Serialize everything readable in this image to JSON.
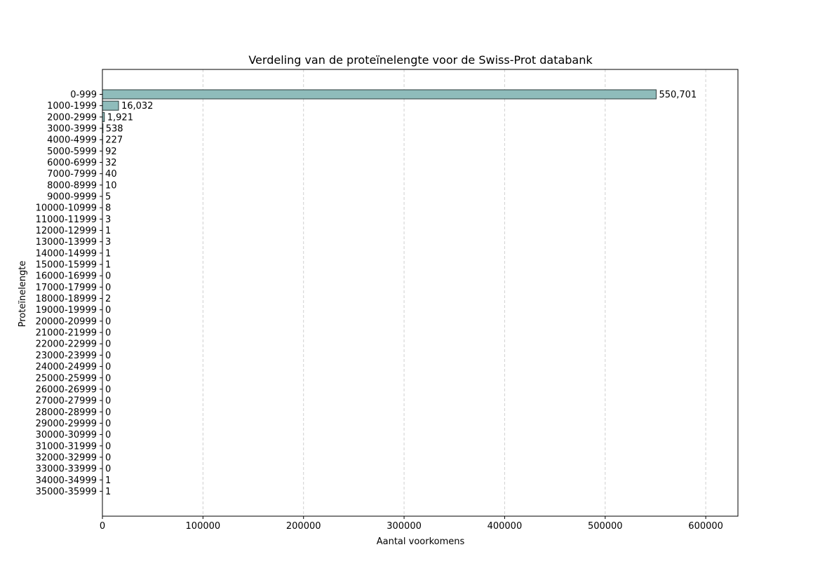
{
  "chart_data": {
    "type": "bar",
    "orientation": "horizontal",
    "title": "Verdeling van de proteïnelengte voor de Swiss-Prot databank",
    "xlabel": "Aantal voorkomens",
    "ylabel": "Proteïnelengte",
    "xlim": [
      0,
      632000
    ],
    "xticks": [
      0,
      100000,
      200000,
      300000,
      400000,
      500000,
      600000
    ],
    "xtick_labels": [
      "0",
      "100000",
      "200000",
      "300000",
      "400000",
      "500000",
      "600000"
    ],
    "grid": "x-axis dashed",
    "bar_color": "#8fbcbb",
    "bar_edge_color": "#2e3b3b",
    "categories": [
      "0-999",
      "1000-1999",
      "2000-2999",
      "3000-3999",
      "4000-4999",
      "5000-5999",
      "6000-6999",
      "7000-7999",
      "8000-8999",
      "9000-9999",
      "10000-10999",
      "11000-11999",
      "12000-12999",
      "13000-13999",
      "14000-14999",
      "15000-15999",
      "16000-16999",
      "17000-17999",
      "18000-18999",
      "19000-19999",
      "20000-20999",
      "21000-21999",
      "22000-22999",
      "23000-23999",
      "24000-24999",
      "25000-25999",
      "26000-26999",
      "27000-27999",
      "28000-28999",
      "29000-29999",
      "30000-30999",
      "31000-31999",
      "32000-32999",
      "33000-33999",
      "34000-34999",
      "35000-35999"
    ],
    "values": [
      550701,
      16032,
      1921,
      538,
      227,
      92,
      32,
      40,
      10,
      5,
      8,
      3,
      1,
      3,
      1,
      1,
      0,
      0,
      2,
      0,
      0,
      0,
      0,
      0,
      0,
      0,
      0,
      0,
      0,
      0,
      0,
      0,
      0,
      0,
      1,
      1
    ],
    "value_labels": [
      "550,701",
      "16,032",
      "1,921",
      "538",
      "227",
      "92",
      "32",
      "40",
      "10",
      "5",
      "8",
      "3",
      "1",
      "3",
      "1",
      "1",
      "0",
      "0",
      "2",
      "0",
      "0",
      "0",
      "0",
      "0",
      "0",
      "0",
      "0",
      "0",
      "0",
      "0",
      "0",
      "0",
      "0",
      "0",
      "1",
      "1"
    ]
  }
}
